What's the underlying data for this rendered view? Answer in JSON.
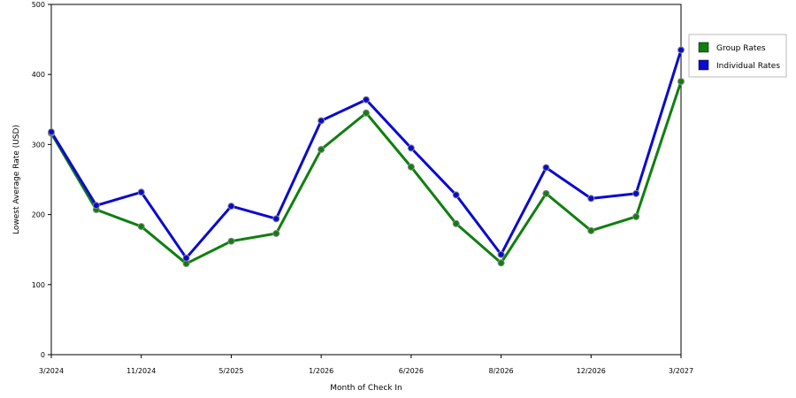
{
  "chart_data": {
    "type": "line",
    "xlabel": "Month of Check In",
    "ylabel": "Lowest Average Rate (USD)",
    "ylim": [
      0,
      500
    ],
    "yticks": [
      0,
      100,
      200,
      300,
      400,
      500
    ],
    "x_tick_labels": [
      {
        "index": 0,
        "label": "3/2024"
      },
      {
        "index": 2,
        "label": "11/2024"
      },
      {
        "index": 4,
        "label": "5/2025"
      },
      {
        "index": 6,
        "label": "1/2026"
      },
      {
        "index": 8,
        "label": "6/2026"
      },
      {
        "index": 10,
        "label": "8/2026"
      },
      {
        "index": 12,
        "label": "12/2026"
      },
      {
        "index": 14,
        "label": "3/2027"
      }
    ],
    "grid": true,
    "legend_position": "right",
    "series": [
      {
        "name": "Group Rates",
        "color": "#0f7f0f",
        "values": [
          316,
          207,
          183,
          130,
          162,
          173,
          293,
          345,
          268,
          187,
          131,
          230,
          177,
          197,
          390
        ]
      },
      {
        "name": "Individual Rates",
        "color": "#0a0ad0",
        "values": [
          318,
          213,
          232,
          138,
          212,
          194,
          334,
          364,
          295,
          228,
          143,
          267,
          223,
          230,
          435
        ]
      }
    ]
  }
}
